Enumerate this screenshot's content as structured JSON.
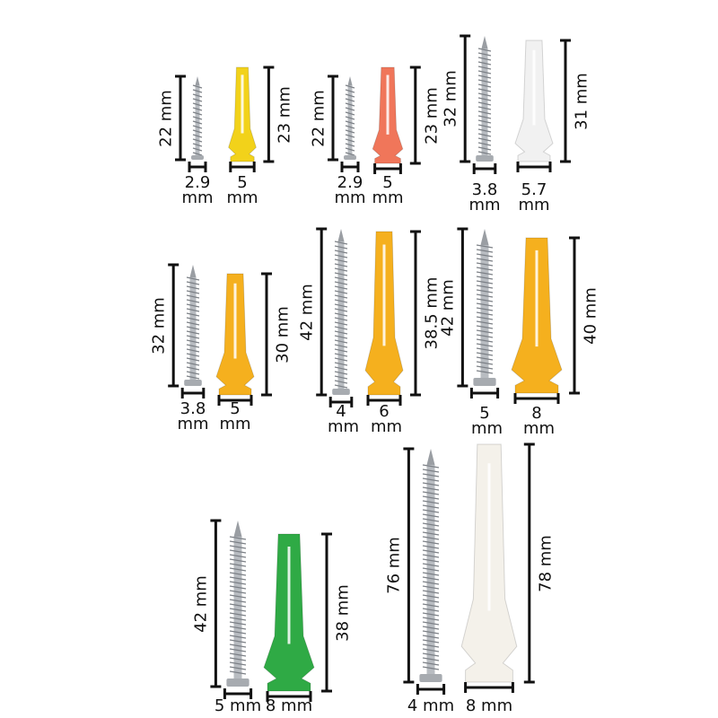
{
  "sets": [
    {
      "screw_length": "22 mm",
      "anchor_length": "23 mm",
      "screw_diameter": "2.9 mm",
      "anchor_diameter": "5 mm"
    },
    {
      "screw_length": "22 mm",
      "anchor_length": "23 mm",
      "screw_diameter": "2.9 mm",
      "anchor_diameter": "5 mm"
    },
    {
      "screw_length": "32 mm",
      "anchor_length": "31 mm",
      "screw_diameter": "3.8 mm",
      "anchor_diameter": "5.7 mm"
    },
    {
      "screw_length": "32 mm",
      "anchor_length": "30 mm",
      "screw_diameter": "3.8 mm",
      "anchor_diameter": "5 mm"
    },
    {
      "screw_length": "42 mm",
      "anchor_length": "38.5 mm",
      "screw_diameter": "4 mm",
      "anchor_diameter": "6 mm"
    },
    {
      "screw_length": "42 mm",
      "anchor_length": "40 mm",
      "screw_diameter": "5 mm",
      "anchor_diameter": "8 mm"
    },
    {
      "screw_length": "42 mm",
      "anchor_length": "38 mm",
      "screw_diameter": "5 mm",
      "anchor_diameter": "8 mm"
    },
    {
      "screw_length": "76 mm",
      "anchor_length": "78 mm",
      "screw_diameter": "4 mm",
      "anchor_diameter": "8 mm"
    }
  ]
}
